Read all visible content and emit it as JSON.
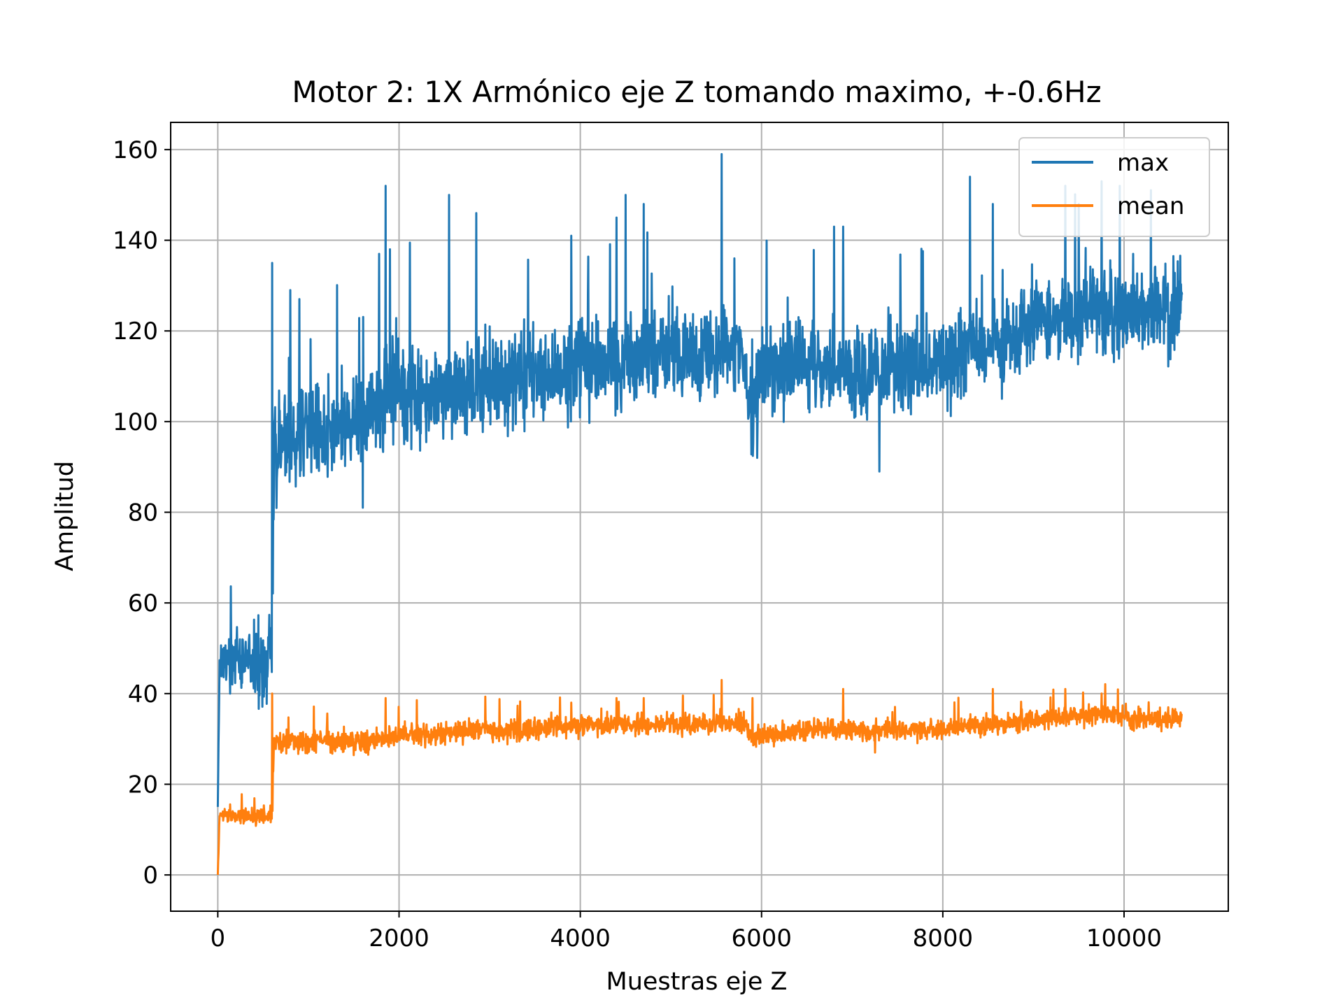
{
  "chart_data": {
    "type": "line",
    "title": "Motor 2: 1X Armónico eje Z tomando maximo, +-0.6Hz",
    "xlabel": "Muestras eje Z",
    "ylabel": "Amplitud",
    "xlim": [
      -520,
      11150
    ],
    "ylim": [
      -8,
      166
    ],
    "xticks": [
      0,
      2000,
      4000,
      6000,
      8000,
      10000
    ],
    "yticks": [
      0,
      20,
      40,
      60,
      80,
      100,
      120,
      140,
      160
    ],
    "grid": true,
    "legend_position": "top-right",
    "colors": {
      "max": "#1f77b4",
      "mean": "#ff7f0e",
      "grid": "#b0b0b0"
    },
    "series": [
      {
        "name": "max",
        "color": "#1f77b4",
        "x": [
          0,
          20,
          100,
          200,
          300,
          400,
          500,
          600,
          620,
          680,
          760,
          900,
          1000,
          1100,
          1200,
          1300,
          1400,
          1500,
          1600,
          1700,
          1800,
          1900,
          2000,
          2200,
          2400,
          2600,
          2800,
          3000,
          3200,
          3400,
          3600,
          3800,
          4000,
          4200,
          4400,
          4600,
          4800,
          5000,
          5200,
          5400,
          5600,
          5800,
          5900,
          6000,
          6200,
          6400,
          6600,
          6800,
          7000,
          7200,
          7400,
          7600,
          7800,
          8000,
          8200,
          8400,
          8600,
          8800,
          9000,
          9200,
          9400,
          9600,
          9800,
          10000,
          10200,
          10400,
          10640
        ],
        "y": [
          15,
          48,
          47,
          48,
          47,
          47,
          46,
          48,
          92,
          95,
          96,
          97,
          97,
          98,
          98,
          99,
          100,
          101,
          102,
          103,
          104,
          106,
          107,
          106,
          107,
          108,
          108,
          109,
          110,
          110,
          111,
          111,
          112,
          113,
          114,
          114,
          115,
          115,
          114,
          115,
          115,
          114,
          100,
          112,
          112,
          112,
          113,
          112,
          111,
          111,
          112,
          112,
          113,
          113,
          115,
          116,
          117,
          119,
          123,
          123,
          124,
          124,
          123,
          124,
          123,
          124,
          125
        ],
        "peaks": [
          {
            "x": 600,
            "y": 135
          },
          {
            "x": 800,
            "y": 129
          },
          {
            "x": 900,
            "y": 127
          },
          {
            "x": 1850,
            "y": 152
          },
          {
            "x": 1780,
            "y": 137
          },
          {
            "x": 1900,
            "y": 138
          },
          {
            "x": 2550,
            "y": 150
          },
          {
            "x": 2850,
            "y": 146
          },
          {
            "x": 3900,
            "y": 141
          },
          {
            "x": 4400,
            "y": 145
          },
          {
            "x": 4500,
            "y": 150
          },
          {
            "x": 4700,
            "y": 148
          },
          {
            "x": 5560,
            "y": 159
          },
          {
            "x": 5700,
            "y": 136
          },
          {
            "x": 6800,
            "y": 143
          },
          {
            "x": 6900,
            "y": 143
          },
          {
            "x": 7300,
            "y": 89
          },
          {
            "x": 8300,
            "y": 154
          },
          {
            "x": 8550,
            "y": 148
          },
          {
            "x": 9350,
            "y": 152
          },
          {
            "x": 9500,
            "y": 148
          },
          {
            "x": 9750,
            "y": 153
          },
          {
            "x": 9950,
            "y": 152
          },
          {
            "x": 10100,
            "y": 137
          },
          {
            "x": 5950,
            "y": 92
          },
          {
            "x": 1600,
            "y": 81
          }
        ]
      },
      {
        "name": "mean",
        "color": "#ff7f0e",
        "x": [
          0,
          20,
          100,
          200,
          300,
          400,
          500,
          600,
          620,
          700,
          800,
          1000,
          1200,
          1400,
          1600,
          1800,
          2000,
          2200,
          2400,
          2600,
          2800,
          3000,
          3200,
          3400,
          3600,
          3800,
          4000,
          4200,
          4400,
          4600,
          4800,
          5000,
          5200,
          5400,
          5600,
          5800,
          5900,
          6000,
          6200,
          6400,
          6600,
          6800,
          7000,
          7200,
          7400,
          7600,
          7800,
          8000,
          8200,
          8400,
          8600,
          8800,
          9000,
          9200,
          9400,
          9600,
          9800,
          10000,
          10200,
          10400,
          10640
        ],
        "y": [
          0,
          13,
          13.5,
          13,
          13,
          13,
          13,
          13,
          29,
          29,
          30,
          29.5,
          30,
          29.5,
          29,
          30,
          30.5,
          31,
          31,
          31.5,
          32,
          32,
          32,
          32,
          32.5,
          33,
          33,
          33,
          33,
          33,
          33,
          33.5,
          33,
          33,
          33.5,
          34,
          30,
          31,
          31,
          31.5,
          32,
          32,
          32,
          31.5,
          32,
          32,
          32,
          32,
          32.5,
          33,
          33,
          33.5,
          34,
          34.5,
          35,
          35,
          35.5,
          35,
          34.5,
          34.5,
          35
        ],
        "peaks": [
          {
            "x": 600,
            "y": 40
          },
          {
            "x": 1850,
            "y": 39
          },
          {
            "x": 3900,
            "y": 38
          },
          {
            "x": 4400,
            "y": 39
          },
          {
            "x": 4700,
            "y": 39
          },
          {
            "x": 5560,
            "y": 43
          },
          {
            "x": 5900,
            "y": 39
          },
          {
            "x": 6900,
            "y": 41
          },
          {
            "x": 7250,
            "y": 27
          },
          {
            "x": 8550,
            "y": 41
          },
          {
            "x": 9350,
            "y": 41
          },
          {
            "x": 9750,
            "y": 40
          }
        ]
      }
    ]
  }
}
